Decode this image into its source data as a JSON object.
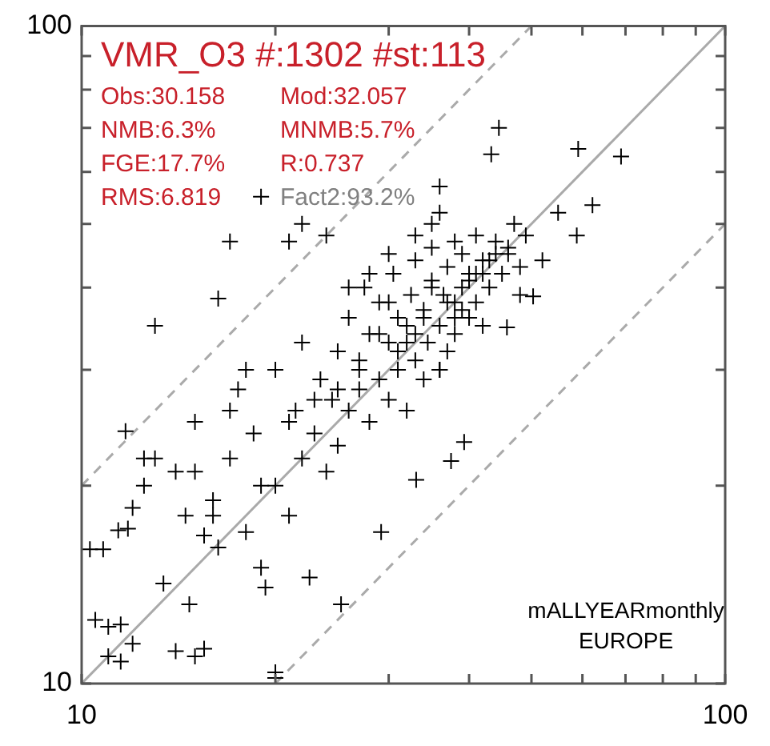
{
  "chart_data": {
    "type": "scatter",
    "title": "VMR_O3 #:1302 #st:113",
    "annotations": [
      "Obs:30.158",
      "Mod:32.057",
      "NMB:6.3%",
      "MNMB:5.7%",
      "FGE:17.7%",
      "R:0.737",
      "RMS:6.819",
      "Fact2:93.2%",
      "mALLYEARmonthly",
      "EUROPE"
    ],
    "log": "xy",
    "grid": false,
    "legend": false,
    "marker": "cross",
    "xlim": [
      10,
      100
    ],
    "ylim": [
      10,
      100
    ],
    "xticks": [
      10,
      {
        "value": 20,
        "label": null
      },
      {
        "value": 30,
        "label": null
      },
      {
        "value": 40,
        "label": null
      },
      {
        "value": 50,
        "label": null
      },
      {
        "value": 60,
        "label": null
      },
      {
        "value": 70,
        "label": null
      },
      {
        "value": 80,
        "label": null
      },
      {
        "value": 90,
        "label": null
      },
      100
    ],
    "yticks": [
      10,
      {
        "value": 20,
        "label": null
      },
      {
        "value": 30,
        "label": null
      },
      {
        "value": 40,
        "label": null
      },
      {
        "value": 50,
        "label": null
      },
      {
        "value": 60,
        "label": null
      },
      {
        "value": 70,
        "label": null
      },
      {
        "value": 80,
        "label": null
      },
      {
        "value": 90,
        "label": null
      },
      100
    ],
    "series": [
      {
        "type": "line",
        "color": "#aaaaaa",
        "line_style": "solid",
        "marker": "none",
        "x": [
          10,
          100
        ],
        "values": [
          10,
          100
        ]
      },
      {
        "type": "line",
        "color": "#aaaaaa",
        "line_style": "dashed",
        "marker": "none",
        "x": [
          10,
          50
        ],
        "values": [
          20,
          100
        ]
      },
      {
        "type": "line",
        "color": "#aaaaaa",
        "line_style": "dashed",
        "marker": "none",
        "x": [
          20,
          100
        ],
        "values": [
          10,
          50
        ]
      },
      {
        "color": "#000000",
        "x": [
          10.3,
          10.8,
          10.5,
          11,
          11.5,
          12,
          11,
          11.5,
          14,
          15,
          15.5,
          20,
          11.8,
          11.4,
          12,
          13.4,
          14.7,
          15.5,
          16.3,
          11.7,
          16.3,
          21,
          43.3,
          44.5,
          59.1,
          68.9,
          58.8,
          62.2,
          36,
          39.3,
          37.5,
          29.2,
          25.3,
          20,
          19.3,
          22.6,
          33.1,
          45.8,
          50.3,
          12.5,
          13,
          14,
          14.5,
          15,
          16,
          17,
          17.5,
          18,
          18.5,
          19,
          20,
          21,
          21.5,
          22,
          22,
          23,
          23.5,
          24,
          24.5,
          25,
          25,
          26,
          26,
          27,
          27,
          27.5,
          28,
          28,
          29,
          29,
          30,
          30,
          30.5,
          31,
          31,
          32,
          32,
          32.5,
          33,
          33,
          34,
          34,
          34.5,
          35,
          35,
          36,
          36,
          36.5,
          37,
          37,
          38,
          38,
          39,
          39,
          40,
          40,
          41,
          41,
          42,
          42,
          43,
          44,
          45,
          46,
          47,
          48,
          49,
          52,
          55,
          26,
          28,
          30,
          33,
          35,
          38,
          41,
          44,
          24,
          27,
          31,
          34,
          37,
          40,
          43,
          46,
          22,
          25,
          29,
          32,
          36,
          39,
          42,
          48,
          17,
          19,
          21,
          23,
          18,
          20,
          13,
          16,
          12.5,
          15,
          17,
          19,
          33,
          35,
          38,
          30,
          36
        ],
        "values": [
          16,
          16,
          12.5,
          12.2,
          12.3,
          11.5,
          11,
          10.8,
          11.2,
          11,
          11.3,
          10.2,
          17.2,
          17.1,
          18.5,
          14.2,
          13.2,
          16.8,
          16.1,
          24.2,
          38.5,
          47,
          63.8,
          70,
          65,
          63.3,
          48,
          53.4,
          57,
          23.3,
          21.8,
          17,
          13.2,
          10.4,
          14,
          14.5,
          20.4,
          34.8,
          38.8,
          20,
          22,
          21,
          18,
          25,
          19,
          22,
          28,
          17,
          24,
          20,
          30,
          18,
          26,
          22,
          33,
          24,
          29,
          21,
          27,
          32,
          23,
          26,
          36,
          28,
          31,
          40,
          25,
          34,
          29,
          38,
          27,
          33,
          42,
          30,
          36,
          26,
          35,
          39,
          31,
          44,
          29,
          37,
          33,
          41,
          46,
          30,
          35,
          39,
          43,
          32,
          38,
          34,
          45,
          40,
          36,
          42,
          48,
          38,
          35,
          44,
          40,
          47,
          42,
          45,
          50,
          43,
          48,
          44,
          52,
          40,
          42,
          38,
          34,
          40,
          36,
          42,
          45,
          48,
          30,
          32,
          36,
          38,
          41,
          44,
          46,
          50,
          28,
          34,
          33,
          30,
          37,
          42,
          39,
          47,
          55,
          25,
          27,
          30,
          20,
          35,
          18,
          22,
          21,
          26,
          15,
          48,
          50,
          47,
          45,
          52
        ]
      }
    ]
  }
}
